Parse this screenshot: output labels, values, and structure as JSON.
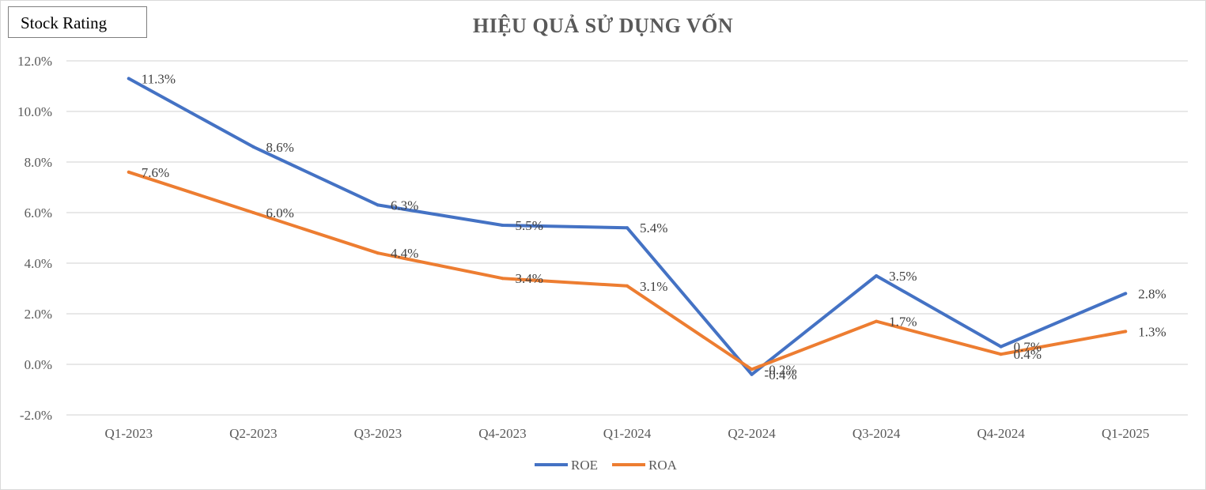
{
  "badge": {
    "label": "Stock Rating"
  },
  "chart_data": {
    "type": "line",
    "title": "HIỆU QUẢ SỬ DỤNG VỐN",
    "categories": [
      "Q1-2023",
      "Q2-2023",
      "Q3-2023",
      "Q4-2023",
      "Q1-2024",
      "Q2-2024",
      "Q3-2024",
      "Q4-2024",
      "Q1-2025"
    ],
    "ylim": [
      -2.0,
      12.0
    ],
    "yticks": [
      12.0,
      10.0,
      8.0,
      6.0,
      4.0,
      2.0,
      0.0,
      -2.0
    ],
    "ytick_labels": [
      "12.0%",
      "10.0%",
      "8.0%",
      "6.0%",
      "4.0%",
      "2.0%",
      "0.0%",
      "-2.0%"
    ],
    "grid": true,
    "legend_position": "bottom",
    "series": [
      {
        "name": "ROE",
        "color": "#4472c4",
        "values": [
          11.3,
          8.6,
          6.3,
          5.5,
          5.4,
          -0.4,
          3.5,
          0.7,
          2.8
        ],
        "labels": [
          "11.3%",
          "8.6%",
          "6.3%",
          "5.5%",
          "5.4%",
          "-0.4%",
          "3.5%",
          "0.7%",
          "2.8%"
        ]
      },
      {
        "name": "ROA",
        "color": "#ed7d31",
        "values": [
          7.6,
          6.0,
          4.4,
          3.4,
          3.1,
          -0.2,
          1.7,
          0.4,
          1.3
        ],
        "labels": [
          "7.6%",
          "6.0%",
          "4.4%",
          "3.4%",
          "3.1%",
          "-0.2%",
          "1.7%",
          "0.4%",
          "1.3%"
        ]
      }
    ]
  }
}
